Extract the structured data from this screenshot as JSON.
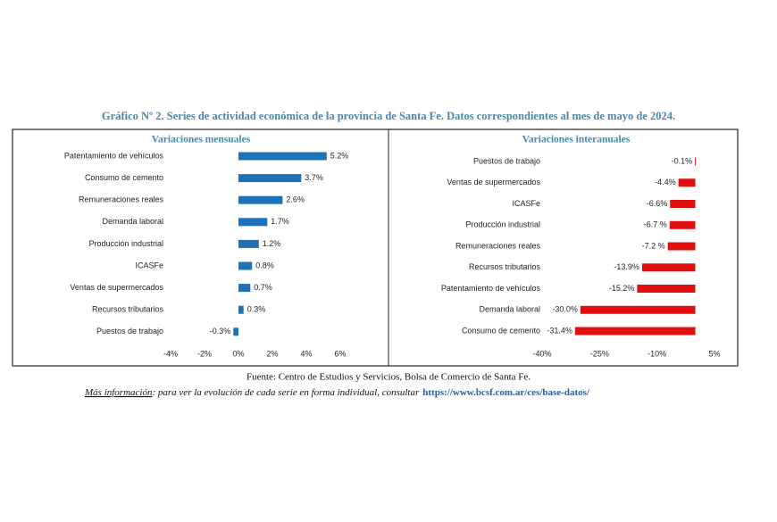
{
  "heading": "Gráfico Nº 2. Series de actividad económica de la provincia de Santa Fe. Datos correspondientes al mes de mayo de 2024.",
  "chart_data": [
    {
      "type": "bar",
      "orientation": "horizontal",
      "title": "Variaciones mensuales",
      "categories": [
        "Patentamiento de vehículos",
        "Consumo de cemento",
        "Remuneraciones reales",
        "Demanda laboral",
        "Producción industrial",
        "ICASFe",
        "Ventas de supermercados",
        "Recursos tributarios",
        "Puestos de trabajo"
      ],
      "values": [
        5.2,
        3.7,
        2.6,
        1.7,
        1.2,
        0.8,
        0.7,
        0.3,
        -0.3
      ],
      "value_labels": [
        "5.2%",
        "3.7%",
        "2.6%",
        "1.7%",
        "1.2%",
        "0.8%",
        "0.7%",
        "0.3%",
        "-0.3%"
      ],
      "color": "#1f72b8",
      "xlim": [
        -4,
        6
      ],
      "xticks": [
        {
          "value": -4,
          "label": "-4%"
        },
        {
          "value": -2,
          "label": "-2%"
        },
        {
          "value": 0,
          "label": "0%"
        },
        {
          "value": 2,
          "label": "2%"
        },
        {
          "value": 4,
          "label": "4%"
        },
        {
          "value": 6,
          "label": "6%"
        }
      ]
    },
    {
      "type": "bar",
      "orientation": "horizontal",
      "title": "Variaciones interanuales",
      "categories": [
        "Puestos de trabajo",
        "Ventas de supermercados",
        "ICASFe",
        "Producción industrial",
        "Remuneraciones reales",
        "Recursos tributarios",
        "Patentamiento de vehículos",
        "Demanda laboral",
        "Consumo de cemento"
      ],
      "values": [
        -0.1,
        -4.4,
        -6.6,
        -6.7,
        -7.2,
        -13.9,
        -15.2,
        -30.0,
        -31.4
      ],
      "value_labels": [
        "-0.1%",
        "-4.4%",
        "-6.6%",
        "-6.7 %",
        "-7.2 %",
        "-13.9%",
        "-15.2%",
        "-30.0%",
        "-31.4%"
      ],
      "color": "#e01010",
      "xlim": [
        -40,
        5
      ],
      "xticks": [
        {
          "value": -40,
          "label": "-40%"
        },
        {
          "value": -25,
          "label": "-25%"
        },
        {
          "value": -10,
          "label": "-10%"
        },
        {
          "value": 5,
          "label": "5%"
        }
      ]
    }
  ],
  "source": "Fuente: Centro de Estudios y Servicios, Bolsa de Comercio de Santa Fe.",
  "more_info": {
    "label": "Más información",
    "text": ": para ver la evolución de cada serie en forma individual, consultar",
    "link": "https://www.bcsf.com.ar/ces/base-datos/"
  }
}
